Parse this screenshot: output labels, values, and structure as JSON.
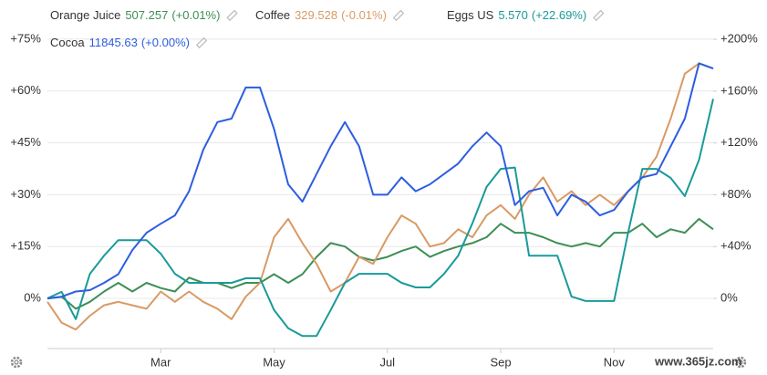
{
  "chart_data": {
    "type": "line",
    "categories": [
      null,
      null,
      null,
      null,
      null,
      null,
      null,
      null,
      "Mar",
      null,
      null,
      null,
      null,
      null,
      null,
      null,
      "May",
      null,
      null,
      null,
      null,
      null,
      null,
      null,
      "Jul",
      null,
      null,
      null,
      null,
      null,
      null,
      null,
      "Sep",
      null,
      null,
      null,
      null,
      null,
      null,
      null,
      "Nov",
      null,
      null,
      null,
      null,
      null,
      null,
      null
    ],
    "ylim": [
      -14.5,
      78.4
    ],
    "yticks": [
      {
        "value": 0,
        "label": "0%"
      },
      {
        "value": 15,
        "label": "+15%"
      },
      {
        "value": 30,
        "label": "+30%"
      },
      {
        "value": 45,
        "label": "+45%"
      },
      {
        "value": 60,
        "label": "+60%"
      },
      {
        "value": 75,
        "label": "+75%"
      }
    ],
    "y2lim": [
      -38.7,
      209.2
    ],
    "y2ticks": [
      {
        "value": 0,
        "label": "0%"
      },
      {
        "value": 40,
        "label": "+40%"
      },
      {
        "value": 80,
        "label": "+80%"
      },
      {
        "value": 120,
        "label": "+120%"
      },
      {
        "value": 160,
        "label": "+160%"
      },
      {
        "value": 200,
        "label": "+200%"
      }
    ],
    "grid": true,
    "watermark": "www.365jz.com",
    "series": [
      {
        "name": "Orange Juice",
        "legend_value": "507.257",
        "legend_change": "(+0.01%)",
        "color": "#3d8f55",
        "values": [
          0,
          0.5,
          -3,
          -1,
          2,
          4.5,
          2,
          4.5,
          3,
          2,
          6,
          4.5,
          4.5,
          3,
          4.5,
          4.5,
          7,
          4.5,
          7,
          12,
          16,
          15,
          12,
          11,
          12,
          13.7,
          15,
          12,
          13.7,
          15,
          16,
          17.7,
          21.6,
          19,
          19,
          17.7,
          16,
          15,
          16,
          15,
          19,
          19,
          21.6,
          17.7,
          20,
          19,
          23,
          20
        ]
      },
      {
        "name": "Coffee",
        "legend_value": "329.528",
        "legend_change": "(-0.01%)",
        "color": "#d99a65",
        "values": [
          -1,
          -7,
          -9,
          -5,
          -2,
          -1,
          -2,
          -3,
          2,
          -1,
          2,
          -1,
          -3,
          -6,
          0.5,
          4.5,
          17.7,
          23,
          16,
          10,
          2,
          4.5,
          12,
          10,
          17.7,
          24,
          21.6,
          15,
          16,
          20,
          17.7,
          24,
          27,
          23,
          30,
          35,
          28,
          31,
          27,
          30,
          27,
          31,
          35,
          41,
          52,
          65,
          68,
          66.5
        ]
      },
      {
        "name": "Eggs US",
        "legend_value": "5.570",
        "legend_change": "(+22.69%)",
        "color": "#1a9a9a",
        "axis": "y2",
        "values": [
          0,
          5,
          -16,
          19,
          33,
          45,
          45,
          45,
          34.5,
          19,
          12,
          12,
          12,
          12,
          15.5,
          15.5,
          -9,
          -23,
          -29,
          -29,
          -9,
          12,
          19,
          19,
          19,
          12,
          8.5,
          8.5,
          19,
          33,
          58,
          86,
          100,
          101,
          33,
          33,
          33,
          1.4,
          -2,
          -2,
          -2,
          51,
          100,
          100,
          93,
          79,
          107,
          154
        ]
      },
      {
        "name": "Cocoa",
        "legend_value": "11845.63",
        "legend_change": "(+0.00%)",
        "color": "#2d5de0",
        "values": [
          0,
          0.5,
          2,
          2.4,
          4.5,
          7,
          14,
          19,
          21.6,
          24,
          31,
          43,
          51,
          52,
          61,
          61,
          49,
          33,
          28,
          36,
          44,
          51,
          44,
          30,
          30,
          35,
          31,
          33,
          36,
          39,
          44,
          48,
          44,
          27,
          31,
          32,
          24,
          30,
          28,
          24,
          25.6,
          31,
          35,
          36,
          44,
          52,
          68,
          66.5
        ]
      }
    ]
  }
}
